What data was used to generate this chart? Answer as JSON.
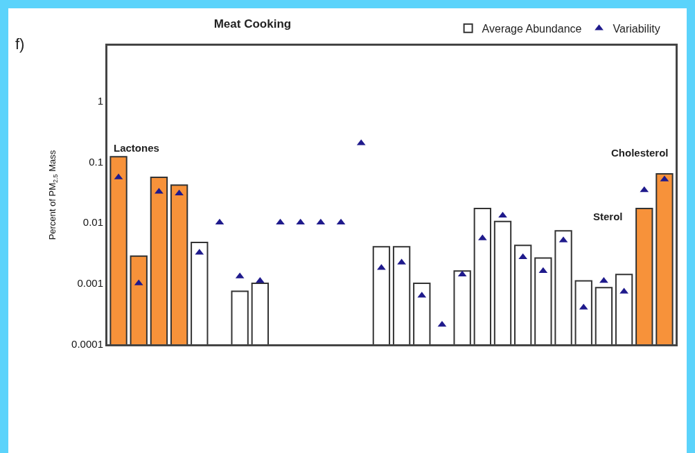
{
  "chart_data": {
    "type": "bar",
    "title": "Meat Cooking",
    "ylabel": "Percent of PM$_{2.5}$ Mass",
    "categories": [
      null,
      null,
      null,
      null,
      null,
      null,
      null,
      null,
      null,
      null,
      null,
      null,
      null,
      null,
      null,
      null,
      null,
      null,
      null,
      null,
      null,
      null,
      null,
      null,
      null,
      null,
      null,
      null
    ],
    "series": [
      {
        "name": "Average Abundance",
        "color": "#ffffff",
        "colors": [
          "#f7923a",
          "#f7923a",
          "#f7923a",
          "#f7923a",
          "#ffffff",
          "#ffffff",
          "#ffffff",
          "#ffffff",
          "#ffffff",
          "#ffffff",
          "#ffffff",
          "#ffffff",
          "#ffffff",
          "#ffffff",
          "#ffffff",
          "#ffffff",
          "#ffffff",
          "#ffffff",
          "#ffffff",
          "#ffffff",
          "#ffffff",
          "#ffffff",
          "#ffffff",
          "#ffffff",
          "#ffffff",
          "#ffffff",
          "#f7923a",
          "#f7923a"
        ],
        "values": [
          0.12,
          0.0028,
          0.055,
          0.041,
          0.0047,
          null,
          0.00074,
          0.001,
          null,
          null,
          null,
          null,
          null,
          0.004,
          0.004,
          0.001,
          null,
          0.0016,
          0.017,
          0.0104,
          0.0042,
          0.0026,
          0.0073,
          0.0011,
          0.00085,
          0.0014,
          0.017,
          0.063
        ]
      },
      {
        "name": "Variability",
        "type": "scatter",
        "color": "#1f1a8c",
        "values": [
          0.055,
          0.001,
          0.032,
          0.03,
          0.0032,
          0.01,
          0.0013,
          0.0011,
          0.01,
          0.01,
          0.01,
          0.01,
          0.2,
          0.0018,
          0.0022,
          0.00063,
          0.00021,
          0.0014,
          0.0055,
          0.013,
          0.0027,
          0.0016,
          0.0051,
          0.0004,
          0.0011,
          0.00073,
          0.034,
          0.051
        ]
      }
    ],
    "log": "y",
    "ylim": [
      0.0001,
      8
    ],
    "yticks": [
      0.0001,
      0.001,
      0.01,
      0.1,
      1
    ],
    "tick_labels": "y",
    "grid": false,
    "legend": "top",
    "marker": "triangle",
    "annotations": [
      "f)",
      "Lactones",
      "Sterol",
      "Cholesterol"
    ]
  }
}
